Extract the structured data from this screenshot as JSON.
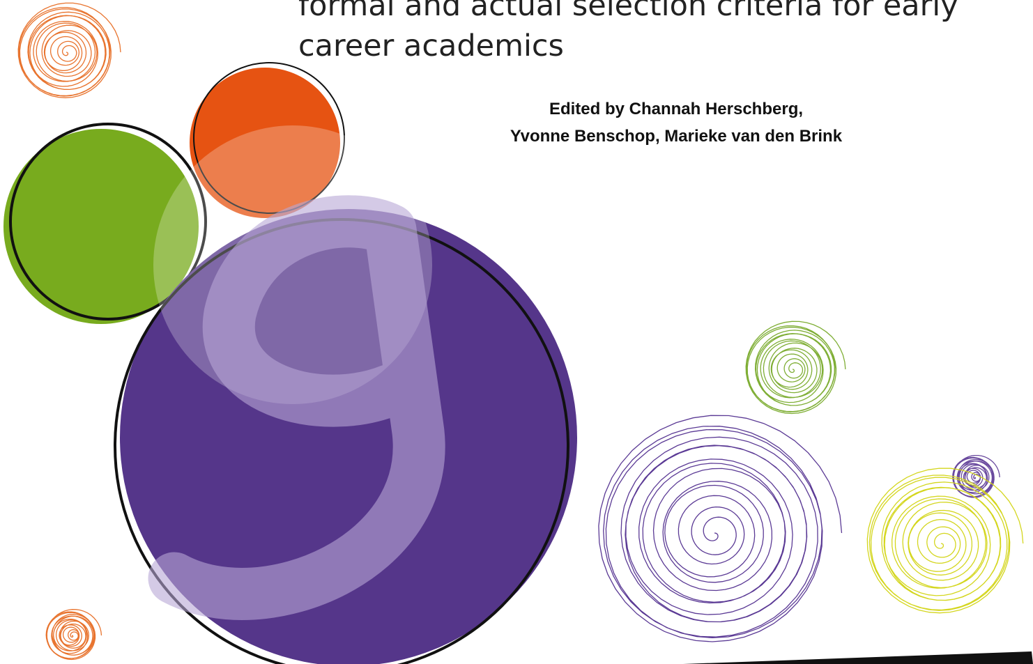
{
  "cover": {
    "title_lines": [
      "formal and actual selection criteria for early",
      "career academics"
    ],
    "editors_lines": [
      "Edited by Channah Herschberg,",
      "Yvonne Benschop, Marieke van den Brink"
    ]
  }
}
